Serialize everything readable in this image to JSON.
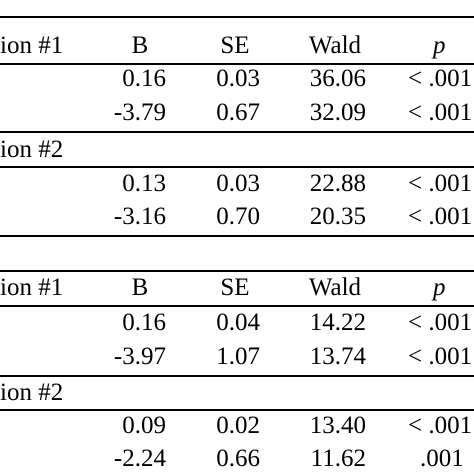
{
  "table1": {
    "model1": {
      "label": "ion #1",
      "headers": {
        "b": "B",
        "se": "SE",
        "wald": "Wald",
        "p": "p"
      },
      "rows": [
        {
          "b": "0.16",
          "se": "0.03",
          "wald": "36.06",
          "p": "< .001"
        },
        {
          "b": "-3.79",
          "se": "0.67",
          "wald": "32.09",
          "p": "< .001"
        }
      ]
    },
    "model2": {
      "label": "ion #2",
      "rows": [
        {
          "b": "0.13",
          "se": "0.03",
          "wald": "22.88",
          "p": "< .001"
        },
        {
          "b": "-3.16",
          "se": "0.70",
          "wald": "20.35",
          "p": "< .001"
        }
      ]
    }
  },
  "table2": {
    "model1": {
      "label": "ion #1",
      "headers": {
        "b": "B",
        "se": "SE",
        "wald": "Wald",
        "p": "p"
      },
      "rows": [
        {
          "b": "0.16",
          "se": "0.04",
          "wald": "14.22",
          "p": "< .001"
        },
        {
          "b": "-3.97",
          "se": "1.07",
          "wald": "13.74",
          "p": "< .001"
        }
      ]
    },
    "model2": {
      "label": "ion #2",
      "rows": [
        {
          "b": "0.09",
          "se": "0.02",
          "wald": "13.40",
          "p": "< .001"
        },
        {
          "b": "-2.24",
          "se": "0.66",
          "wald": "11.62",
          "p": ".001"
        }
      ]
    }
  }
}
